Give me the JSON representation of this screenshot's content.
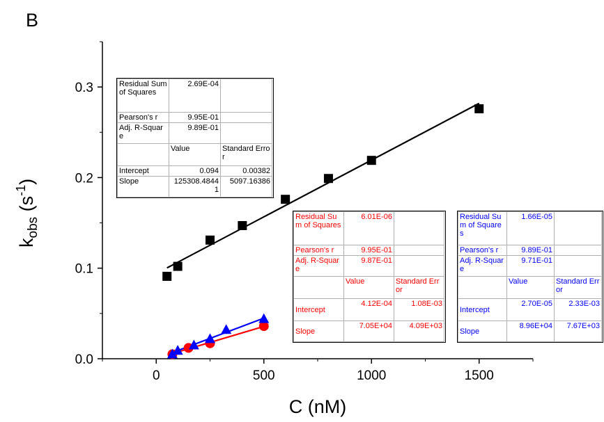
{
  "panel_label": "B",
  "chart_data": {
    "type": "scatter",
    "xlabel": "C (nM)",
    "ylabel_main": "k",
    "ylabel_sub": "obs",
    "ylabel_unit_open": " (s",
    "ylabel_unit_sup": "-1",
    "ylabel_unit_close": ")",
    "xlim": [
      -250,
      1750
    ],
    "ylim": [
      0,
      0.35
    ],
    "xticks": [
      0,
      500,
      1000,
      1500
    ],
    "xtick_labels": [
      "0",
      "500",
      "1000",
      "1500"
    ],
    "yticks": [
      0.0,
      0.1,
      0.2,
      0.3
    ],
    "ytick_labels": [
      "0.0",
      "0.1",
      "0.2",
      "0.3"
    ],
    "grid": false,
    "series": [
      {
        "color": "#000000",
        "marker": "square",
        "points": [
          [
            50,
            0.091
          ],
          [
            100,
            0.102
          ],
          [
            250,
            0.131
          ],
          [
            400,
            0.147
          ],
          [
            600,
            0.176
          ],
          [
            800,
            0.199
          ],
          [
            1000,
            0.219
          ],
          [
            1500,
            0.276
          ]
        ],
        "fit": {
          "x": [
            50,
            1500
          ],
          "intercept": 0.094,
          "slope": 0.000125308
        }
      },
      {
        "color": "#ff0000",
        "marker": "circle",
        "points": [
          [
            75,
            0.005
          ],
          [
            150,
            0.012
          ],
          [
            250,
            0.017
          ],
          [
            500,
            0.036
          ]
        ],
        "fit": {
          "x": [
            75,
            500
          ],
          "intercept": 0.000412,
          "slope": 7.05e-05
        }
      },
      {
        "color": "#0000ff",
        "marker": "triangle",
        "points": [
          [
            75,
            0.005
          ],
          [
            100,
            0.009
          ],
          [
            175,
            0.015
          ],
          [
            250,
            0.022
          ],
          [
            325,
            0.032
          ],
          [
            500,
            0.044
          ]
        ],
        "fit": {
          "x": [
            75,
            500
          ],
          "intercept": 2.7e-05,
          "slope": 8.96e-05
        }
      }
    ]
  },
  "stat_tables": {
    "black": {
      "rss_label": "Residual Sum of Squares",
      "rss": "2.69E-04",
      "pearson_label": "Pearson's r",
      "pearson": "9.95E-01",
      "adjr_label": "Adj. R-Square",
      "adjr": "9.89E-01",
      "value_header": "Value",
      "se_header": "Standard Error",
      "intercept_label": "Intercept",
      "intercept_value": "0.094",
      "intercept_se": "0.00382",
      "slope_label": "Slope",
      "slope_value": "125308.48441",
      "slope_se": "5097.16386"
    },
    "red": {
      "rss_label": "Residual Sum of Squares",
      "rss": "6.01E-06",
      "pearson_label": "Pearson's r",
      "pearson": "9.95E-01",
      "adjr_label": "Adj. R-Square",
      "adjr": "9.87E-01",
      "value_header": "Value",
      "se_header": "Standard Error",
      "intercept_label": "Intercept",
      "intercept_value": "4.12E-04",
      "intercept_se": "1.08E-03",
      "slope_label": "Slope",
      "slope_value": "7.05E+04",
      "slope_se": "4.09E+03"
    },
    "blue": {
      "rss_label": "Residual Sum of Squares",
      "rss": "1.66E-05",
      "pearson_label": "Pearson's r",
      "pearson": "9.89E-01",
      "adjr_label": "Adj. R-Square",
      "adjr": "9.71E-01",
      "value_header": "Value",
      "se_header": "Standard Error",
      "intercept_label": "Intercept",
      "intercept_value": "2.70E-05",
      "intercept_se": "2.33E-03",
      "slope_label": "Slope",
      "slope_value": "8.96E+04",
      "slope_se": "7.67E+03"
    }
  }
}
